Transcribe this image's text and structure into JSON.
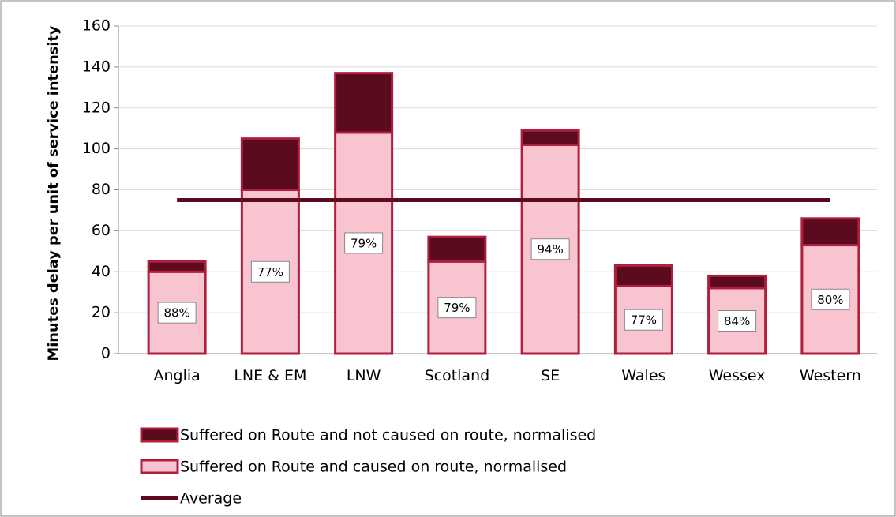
{
  "chart_data": {
    "type": "stacked_bar",
    "y_label": "Minutes delay per unit of service intensity",
    "categories": [
      "Anglia",
      "LNE & EM",
      "LNW",
      "Scotland",
      "SE",
      "Wales",
      "Wessex",
      "Western"
    ],
    "series": [
      {
        "name": "Suffered on Route and not caused on route, normalised",
        "color": "#5c0a1e",
        "values": [
          5,
          25,
          29,
          12,
          7,
          10,
          6,
          13
        ]
      },
      {
        "name": "Suffered on Route and caused on route, normalised",
        "color": "#f8c4d0",
        "values": [
          40,
          80,
          108,
          45,
          102,
          33,
          32,
          53
        ]
      },
      {
        "name": "Average",
        "type": "line",
        "color": "#5c0a1e",
        "values": [
          75,
          75,
          75,
          75,
          75,
          75,
          75,
          75
        ]
      }
    ],
    "annotations": [
      "88%",
      "77%",
      "79%",
      "79%",
      "94%",
      "77%",
      "84%",
      "80%"
    ],
    "ylim": [
      0,
      160
    ],
    "yticks": [
      0,
      20,
      40,
      60,
      80,
      100,
      120,
      140,
      160
    ],
    "grid": true
  }
}
